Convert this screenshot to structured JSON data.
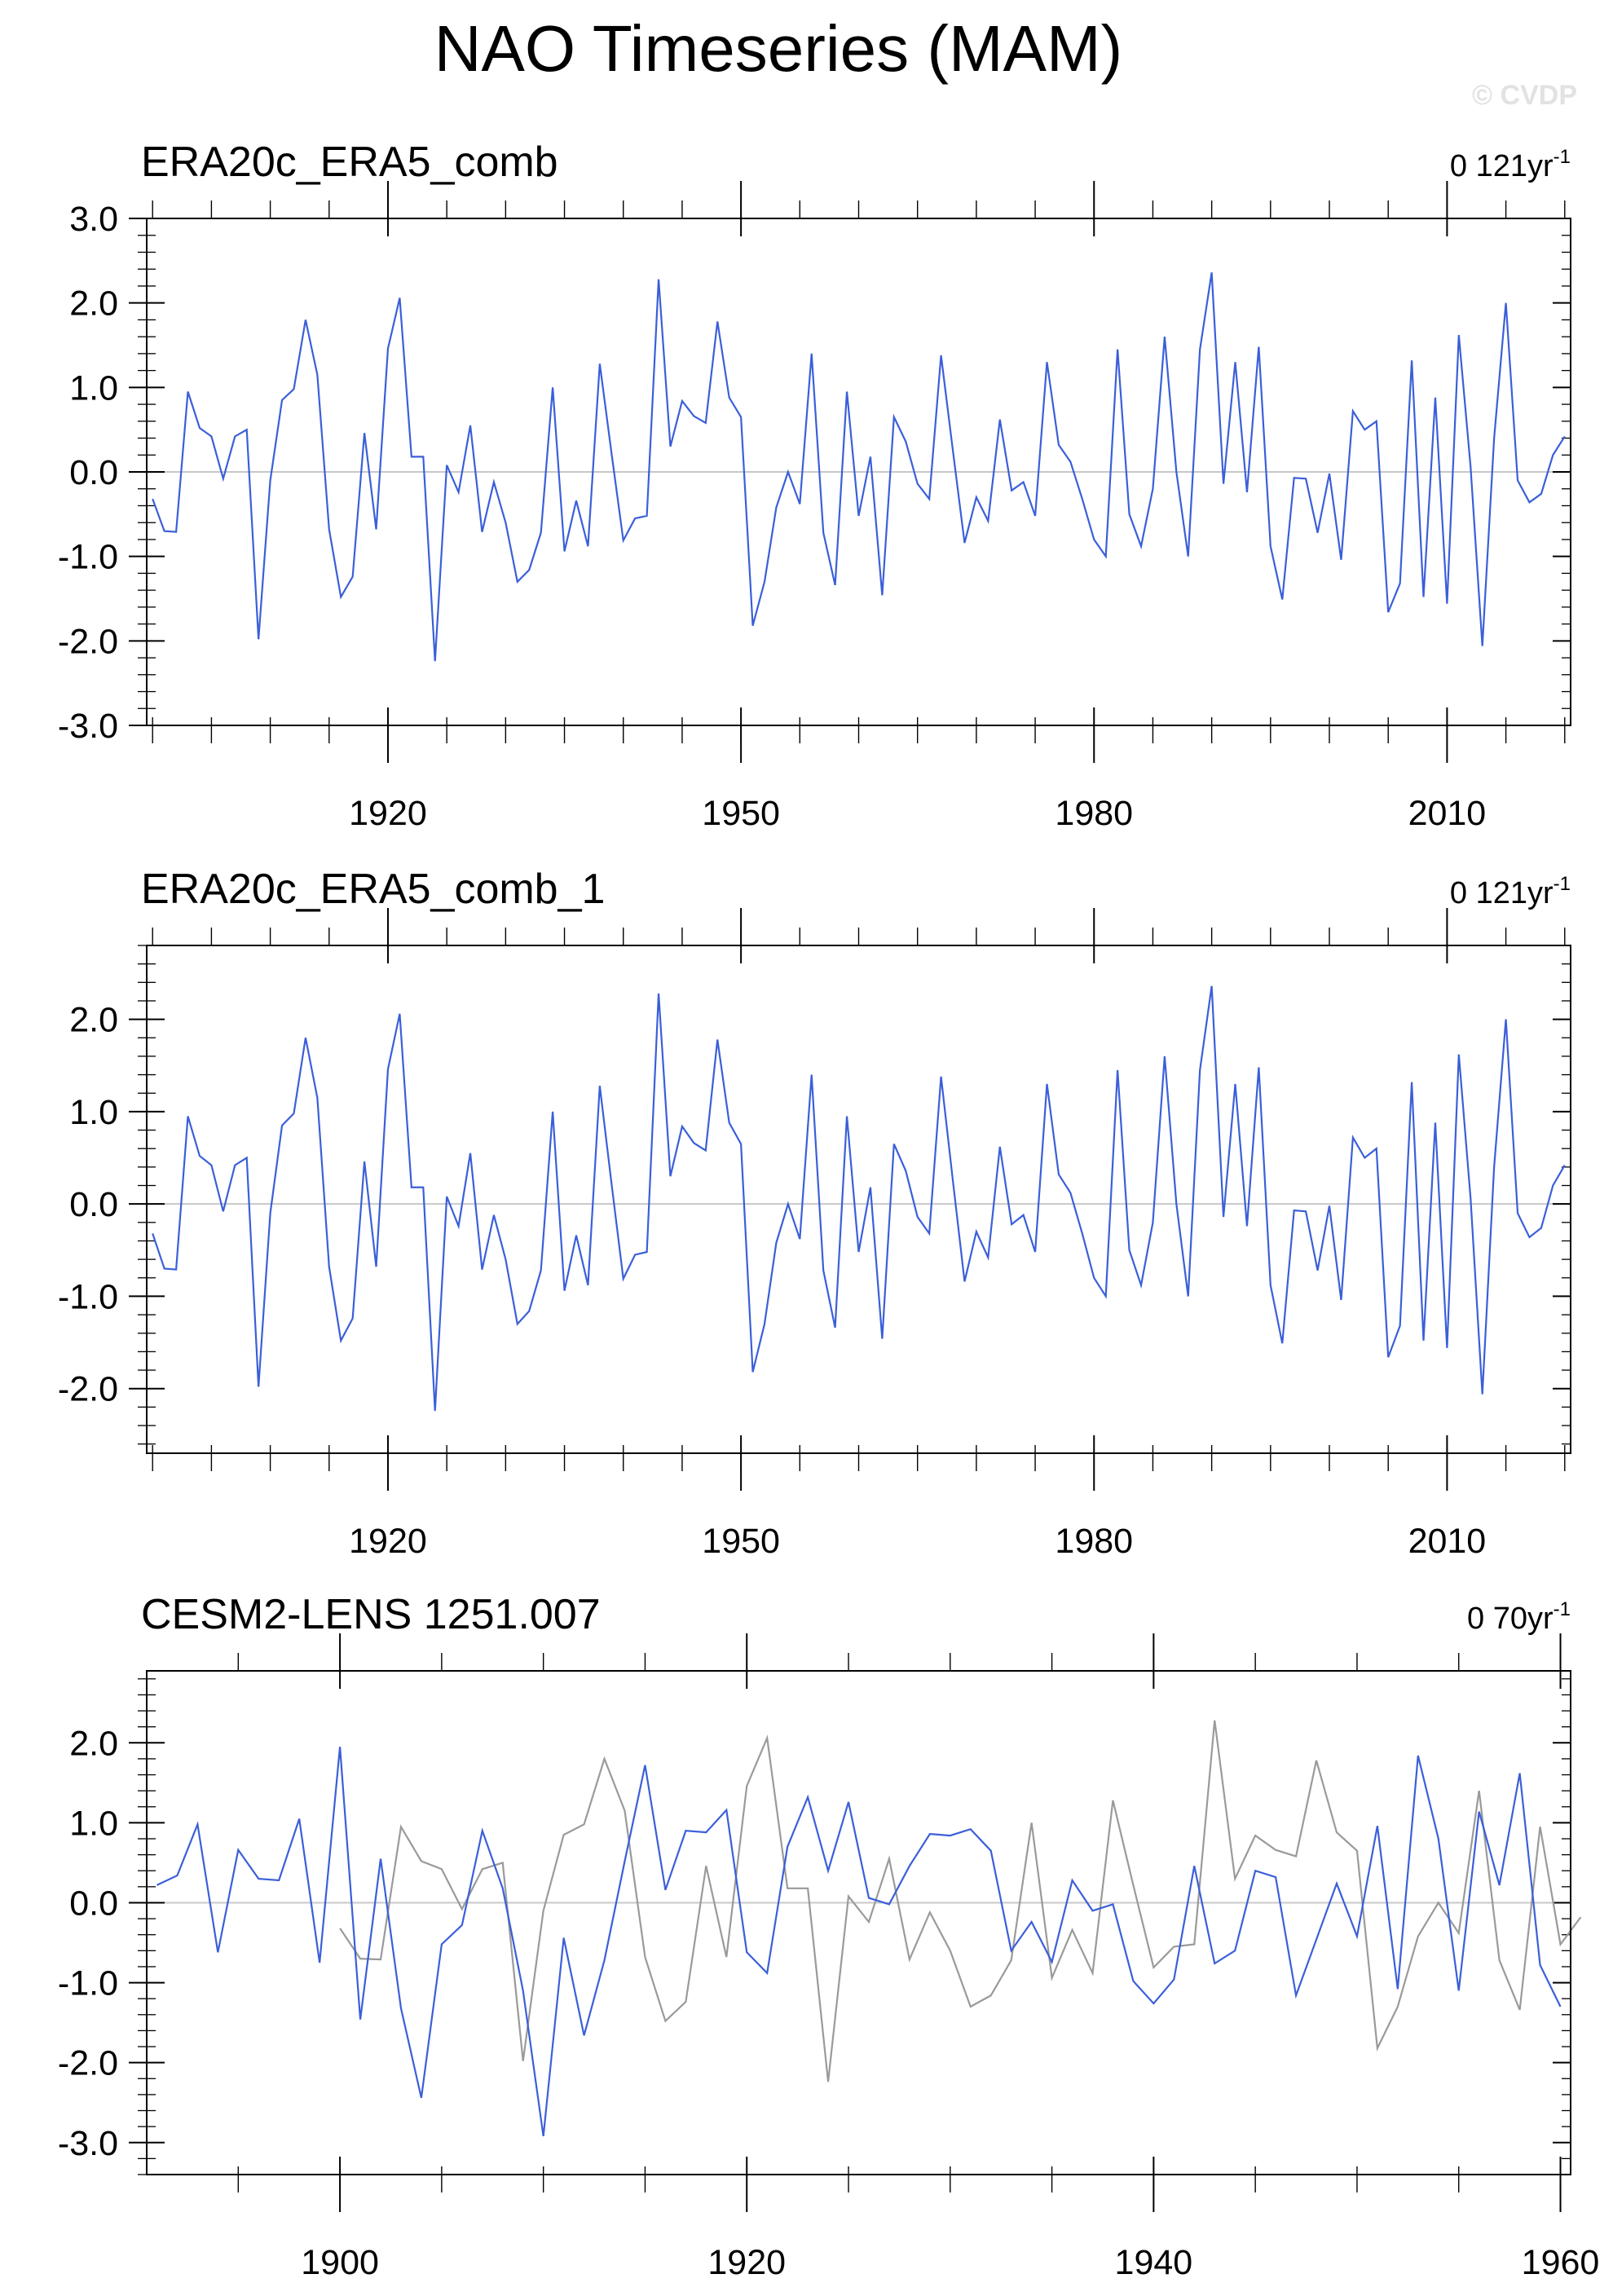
{
  "page": {
    "title": "NAO Timeseries (MAM)",
    "watermark": "© CVDP"
  },
  "colors": {
    "primary_line": "#3b5fd9",
    "secondary_line": "#9a9a9a",
    "zero_line": "#c8c8c8",
    "axis": "#000000"
  },
  "chart_data": [
    {
      "type": "line",
      "title": "ERA20c_ERA5_comb",
      "trend_label": "0 121yr",
      "trend_exponent": "-1",
      "xlim": [
        1899.5,
        2020.5
      ],
      "ylim": [
        -3,
        3
      ],
      "yticks": [
        -3,
        -2,
        -1,
        0,
        1,
        2,
        3
      ],
      "ytick_labels": [
        "-3.0",
        "-2.0",
        "-1.0",
        "0.0",
        "1.0",
        "2.0",
        "3.0"
      ],
      "xticks": [
        1920,
        1950,
        1980,
        2010
      ],
      "xtick_labels": [
        "1920",
        "1950",
        "1980",
        "2010"
      ],
      "grid": false,
      "series": [
        {
          "start_year": 1900,
          "values": [
            -0.32,
            -0.7,
            -0.71,
            0.95,
            0.52,
            0.42,
            -0.08,
            0.42,
            0.5,
            -1.98,
            -0.1,
            0.85,
            0.98,
            1.8,
            1.15,
            -0.68,
            -1.48,
            -1.24,
            0.46,
            -0.68,
            1.46,
            2.06,
            0.18,
            0.18,
            -2.24,
            0.08,
            -0.24,
            0.55,
            -0.71,
            -0.12,
            -0.6,
            -1.3,
            -1.16,
            -0.72,
            1.0,
            -0.94,
            -0.34,
            -0.88,
            1.28,
            0.22,
            -0.81,
            -0.55,
            -0.52,
            2.28,
            0.3,
            0.84,
            0.66,
            0.58,
            1.78,
            0.88,
            0.65,
            -1.82,
            -1.3,
            -0.42,
            0.0,
            -0.38,
            1.4,
            -0.72,
            -1.34,
            0.95,
            -0.52,
            0.18,
            -1.46,
            0.65,
            0.36,
            -0.14,
            -0.32,
            1.38,
            0.26,
            -0.84,
            -0.3,
            -0.58,
            0.62,
            -0.22,
            -0.12,
            -0.52,
            1.3,
            0.32,
            0.12,
            -0.32,
            -0.8,
            -1.0,
            1.45,
            -0.5,
            -0.88,
            -0.2,
            1.6,
            0.0,
            -1.0,
            1.45,
            2.36,
            -0.14,
            1.3,
            -0.24,
            1.48,
            -0.88,
            -1.51,
            -0.07,
            -0.08,
            -0.72,
            -0.02,
            -1.04,
            0.72,
            0.5,
            0.6,
            -1.66,
            -1.32,
            1.32,
            -1.48,
            0.88,
            -1.56,
            1.62,
            0.06,
            -2.06,
            0.4,
            2.0,
            -0.1,
            -0.36,
            -0.26,
            0.2,
            0.42
          ]
        }
      ]
    },
    {
      "type": "line",
      "title": "ERA20c_ERA5_comb_1",
      "trend_label": "0 121yr",
      "trend_exponent": "-1",
      "xlim": [
        1899.5,
        2020.5
      ],
      "ylim": [
        -2.7,
        2.8
      ],
      "yticks": [
        -2,
        -1,
        0,
        1,
        2
      ],
      "ytick_labels": [
        "-2.0",
        "-1.0",
        "0.0",
        "1.0",
        "2.0"
      ],
      "xticks": [
        1920,
        1950,
        1980,
        2010
      ],
      "xtick_labels": [
        "1920",
        "1950",
        "1980",
        "2010"
      ],
      "grid": false,
      "series": [
        {
          "start_year": 1900,
          "values": [
            -0.32,
            -0.7,
            -0.71,
            0.95,
            0.52,
            0.42,
            -0.08,
            0.42,
            0.5,
            -1.98,
            -0.1,
            0.85,
            0.98,
            1.8,
            1.15,
            -0.68,
            -1.48,
            -1.24,
            0.46,
            -0.68,
            1.46,
            2.06,
            0.18,
            0.18,
            -2.24,
            0.08,
            -0.24,
            0.55,
            -0.71,
            -0.12,
            -0.6,
            -1.3,
            -1.16,
            -0.72,
            1.0,
            -0.94,
            -0.34,
            -0.88,
            1.28,
            0.22,
            -0.81,
            -0.55,
            -0.52,
            2.28,
            0.3,
            0.84,
            0.66,
            0.58,
            1.78,
            0.88,
            0.65,
            -1.82,
            -1.3,
            -0.42,
            0.0,
            -0.38,
            1.4,
            -0.72,
            -1.34,
            0.95,
            -0.52,
            0.18,
            -1.46,
            0.65,
            0.36,
            -0.14,
            -0.32,
            1.38,
            0.26,
            -0.84,
            -0.3,
            -0.58,
            0.62,
            -0.22,
            -0.12,
            -0.52,
            1.3,
            0.32,
            0.12,
            -0.32,
            -0.8,
            -1.0,
            1.45,
            -0.5,
            -0.88,
            -0.2,
            1.6,
            0.0,
            -1.0,
            1.45,
            2.36,
            -0.14,
            1.3,
            -0.24,
            1.48,
            -0.88,
            -1.51,
            -0.07,
            -0.08,
            -0.72,
            -0.02,
            -1.04,
            0.72,
            0.5,
            0.6,
            -1.66,
            -1.32,
            1.32,
            -1.48,
            0.88,
            -1.56,
            1.62,
            0.06,
            -2.06,
            0.4,
            2.0,
            -0.1,
            -0.36,
            -0.26,
            0.2,
            0.42
          ]
        }
      ]
    },
    {
      "type": "line",
      "title": "CESM2-LENS 1251.007",
      "trend_label": "0 70yr",
      "trend_exponent": "-1",
      "xlim": [
        1890.5,
        1960.5
      ],
      "ylim": [
        -3.4,
        2.9
      ],
      "yticks": [
        -3,
        -2,
        -1,
        0,
        1,
        2
      ],
      "ytick_labels": [
        "-3.0",
        "-2.0",
        "-1.0",
        "0.0",
        "1.0",
        "2.0"
      ],
      "xticks": [
        1900,
        1920,
        1940,
        1960
      ],
      "xtick_labels": [
        "1900",
        "1920",
        "1940",
        "1960"
      ],
      "grid": false,
      "series": [
        {
          "role": "primary",
          "start_year": 1891,
          "values": [
            0.22,
            0.34,
            0.98,
            -0.62,
            0.66,
            0.3,
            0.28,
            1.05,
            -0.75,
            1.95,
            -1.46,
            0.55,
            -1.32,
            -2.44,
            -0.52,
            -0.28,
            0.9,
            0.18,
            -1.1,
            -2.92,
            -0.44,
            -1.66,
            -0.72,
            0.52,
            1.72,
            0.16,
            0.9,
            0.88,
            1.16,
            -0.62,
            -0.88,
            0.7,
            1.32,
            0.4,
            1.26,
            0.06,
            -0.02,
            0.46,
            0.86,
            0.84,
            0.92,
            0.65,
            -0.6,
            -0.24,
            -0.74,
            0.28,
            -0.1,
            -0.02,
            -0.98,
            -1.26,
            -0.96,
            0.46,
            -0.76,
            -0.6,
            0.4,
            0.32,
            -1.16,
            -0.46,
            0.24,
            -0.42,
            0.96,
            -1.08,
            1.84,
            0.8,
            -1.1,
            1.14,
            0.22,
            1.62,
            -0.78,
            -1.3
          ]
        },
        {
          "role": "secondary",
          "start_year": 1900,
          "values": [
            -0.32,
            -0.7,
            -0.71,
            0.95,
            0.52,
            0.42,
            -0.08,
            0.42,
            0.5,
            -1.98,
            -0.1,
            0.85,
            0.98,
            1.8,
            1.15,
            -0.68,
            -1.48,
            -1.24,
            0.46,
            -0.68,
            1.46,
            2.06,
            0.18,
            0.18,
            -2.24,
            0.08,
            -0.24,
            0.55,
            -0.71,
            -0.12,
            -0.6,
            -1.3,
            -1.16,
            -0.72,
            1.0,
            -0.94,
            -0.34,
            -0.88,
            1.28,
            0.22,
            -0.81,
            -0.55,
            -0.52,
            2.28,
            0.3,
            0.84,
            0.66,
            0.58,
            1.78,
            0.88,
            0.65,
            -1.82,
            -1.3,
            -0.42,
            0.0,
            -0.38,
            1.4,
            -0.72,
            -1.34,
            0.95,
            -0.52,
            -0.18
          ]
        }
      ]
    }
  ]
}
